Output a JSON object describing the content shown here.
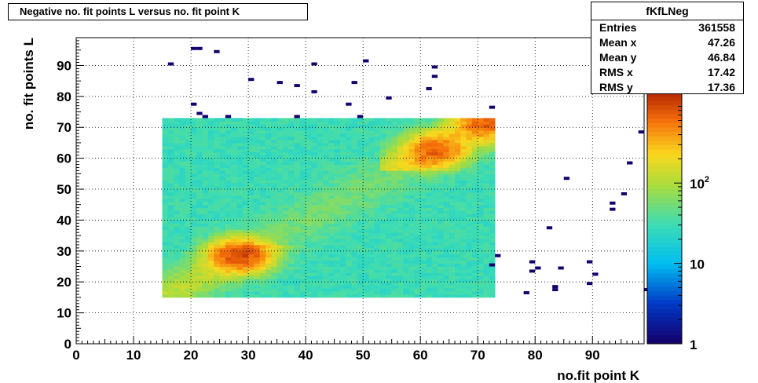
{
  "title": "Negative no. fit points L versus no. fit point K",
  "stats": {
    "name": "fKfLNeg",
    "rows": [
      {
        "label": "Entries",
        "value": "361558"
      },
      {
        "label": "Mean x",
        "value": "47.26"
      },
      {
        "label": "Mean y",
        "value": "46.84"
      },
      {
        "label": "RMS x",
        "value": "17.42"
      },
      {
        "label": "RMS y",
        "value": "17.36"
      }
    ]
  },
  "chart_data": {
    "type": "heatmap",
    "title": "Negative no. fit points L versus no. fit point K",
    "xlabel": "no.fit point K",
    "ylabel": "no. fit points  L",
    "xlim": [
      0,
      99
    ],
    "ylim": [
      0,
      99
    ],
    "x_ticks": [
      0,
      10,
      20,
      30,
      40,
      50,
      60,
      70,
      80,
      90
    ],
    "y_ticks": [
      0,
      10,
      20,
      30,
      40,
      50,
      60,
      70,
      80,
      90
    ],
    "grid": true,
    "z_scale": "log",
    "z_ticks": [
      {
        "value": 1,
        "label": "1"
      },
      {
        "value": 10,
        "label": "10"
      },
      {
        "value": 100,
        "label": "10",
        "sup": "2"
      }
    ],
    "dense_region": {
      "x": [
        15,
        73
      ],
      "y": [
        15,
        73
      ]
    },
    "hotspots": [
      {
        "x": 28,
        "y": 28,
        "peak": 900
      },
      {
        "x": 62,
        "y": 62,
        "peak": 600
      },
      {
        "x": 71,
        "y": 71,
        "peak": 600
      }
    ],
    "sparse_points": [
      [
        16,
        90
      ],
      [
        20,
        95
      ],
      [
        21,
        95
      ],
      [
        24,
        94
      ],
      [
        20,
        77
      ],
      [
        21,
        74
      ],
      [
        22,
        73
      ],
      [
        26,
        73
      ],
      [
        30,
        85
      ],
      [
        35,
        84
      ],
      [
        38,
        83
      ],
      [
        41,
        81
      ],
      [
        38,
        73
      ],
      [
        41,
        90
      ],
      [
        47,
        77
      ],
      [
        48,
        84
      ],
      [
        49,
        73
      ],
      [
        50,
        91
      ],
      [
        54,
        79
      ],
      [
        61,
        82
      ],
      [
        62,
        86
      ],
      [
        62,
        89
      ],
      [
        72,
        76
      ],
      [
        72,
        25
      ],
      [
        73,
        28
      ],
      [
        78,
        16
      ],
      [
        79,
        26
      ],
      [
        79,
        23
      ],
      [
        80,
        24
      ],
      [
        82,
        37
      ],
      [
        83,
        18
      ],
      [
        83,
        17
      ],
      [
        84,
        24
      ],
      [
        85,
        53
      ],
      [
        89,
        26
      ],
      [
        89,
        19
      ],
      [
        90,
        22
      ],
      [
        93,
        45
      ],
      [
        93,
        43
      ],
      [
        95,
        48
      ],
      [
        96,
        58
      ],
      [
        98,
        68
      ],
      [
        99,
        17
      ]
    ]
  }
}
